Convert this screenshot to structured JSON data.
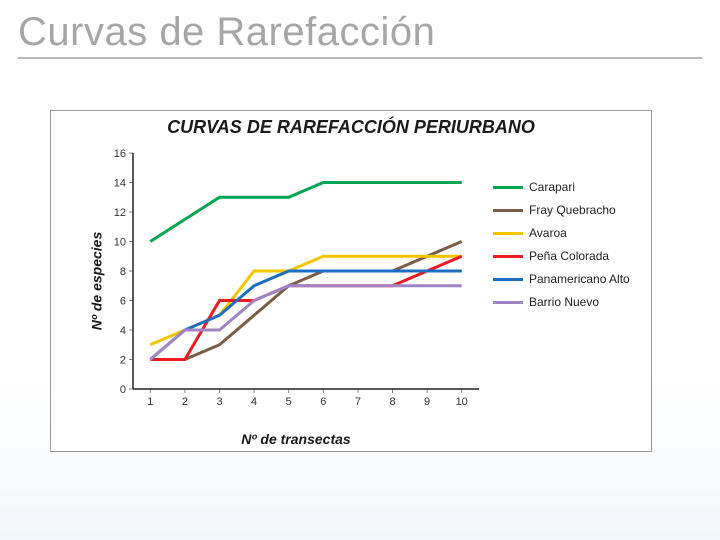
{
  "slide_title": "Curvas de Rarefacción",
  "figure": {
    "type": "line",
    "title": "CURVAS DE RAREFACCIÓN PERIURBANO",
    "title_fontsize": 18,
    "xlabel": "Nº de transectas",
    "ylabel": "Nº de especies",
    "label_fontsize": 14,
    "background_color": "#ffffff",
    "border_color": "#999999",
    "axis_color": "#222222",
    "tick_color": "#888888",
    "tick_fontsize": 11,
    "x_categories": [
      "1",
      "2",
      "3",
      "4",
      "5",
      "6",
      "7",
      "8",
      "9",
      "10"
    ],
    "ylim": [
      0,
      16
    ],
    "ytick_step": 2,
    "line_width": 3,
    "legend_position": "right",
    "legend_fontsize": 12,
    "series": [
      {
        "name": "Carapari",
        "color": "#00a651",
        "values": [
          10,
          11.5,
          13,
          13,
          13,
          14,
          14,
          14,
          14,
          14
        ]
      },
      {
        "name": "Fray Quebracho",
        "color": "#7b5c45",
        "values": [
          2,
          2,
          3,
          5,
          7,
          8,
          8,
          8,
          9,
          10
        ]
      },
      {
        "name": "Avaroa",
        "color": "#f5c400",
        "values": [
          3,
          4,
          5,
          8,
          8,
          9,
          9,
          9,
          9,
          9
        ]
      },
      {
        "name": "Peña Colorada",
        "color": "#ed1c24",
        "values": [
          2,
          2,
          6,
          6,
          7,
          7,
          7,
          7,
          8,
          9
        ]
      },
      {
        "name": "Panamericano Alto",
        "color": "#1b6ec2",
        "values": [
          2,
          4,
          5,
          7,
          8,
          8,
          8,
          8,
          8,
          8
        ]
      },
      {
        "name": "Barrio Nuevo",
        "color": "#a084c4",
        "values": [
          2,
          4,
          4,
          6,
          7,
          7,
          7,
          7,
          7,
          7
        ]
      }
    ]
  }
}
